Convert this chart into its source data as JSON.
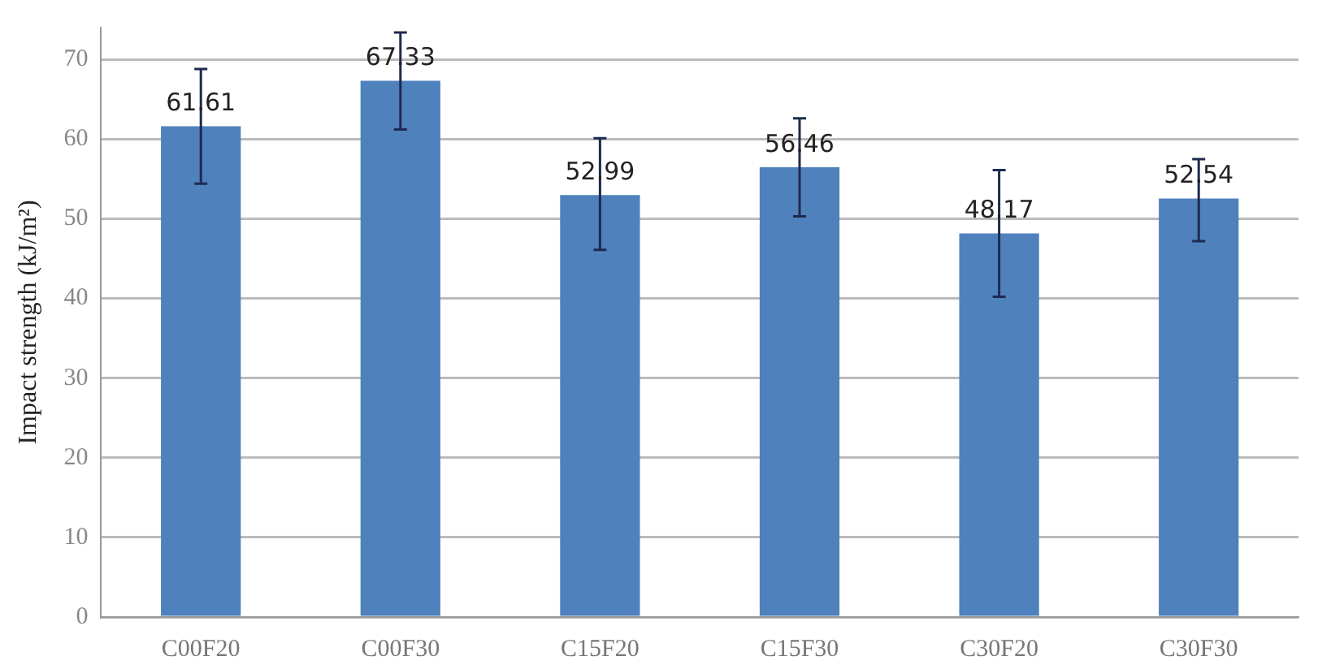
{
  "chart_data": {
    "type": "bar",
    "ylabel": "Impact strength (kJ/m²)",
    "categories": [
      "C00F20",
      "C00F30",
      "C15F20",
      "C15F30",
      "C30F20",
      "C30F30"
    ],
    "values": [
      61.61,
      67.33,
      52.99,
      56.46,
      48.17,
      52.54
    ],
    "errors": [
      [
        54.4,
        68.8
      ],
      [
        61.2,
        73.4
      ],
      [
        46.1,
        60.1
      ],
      [
        50.3,
        62.6
      ],
      [
        40.2,
        56.1
      ],
      [
        47.2,
        57.5
      ]
    ],
    "color": "#4f81bd",
    "ylim": [
      0,
      74
    ],
    "yticks": [
      0,
      10,
      20,
      30,
      40,
      50,
      60,
      70
    ],
    "grid": "y",
    "legend": false,
    "data_labels": true
  }
}
